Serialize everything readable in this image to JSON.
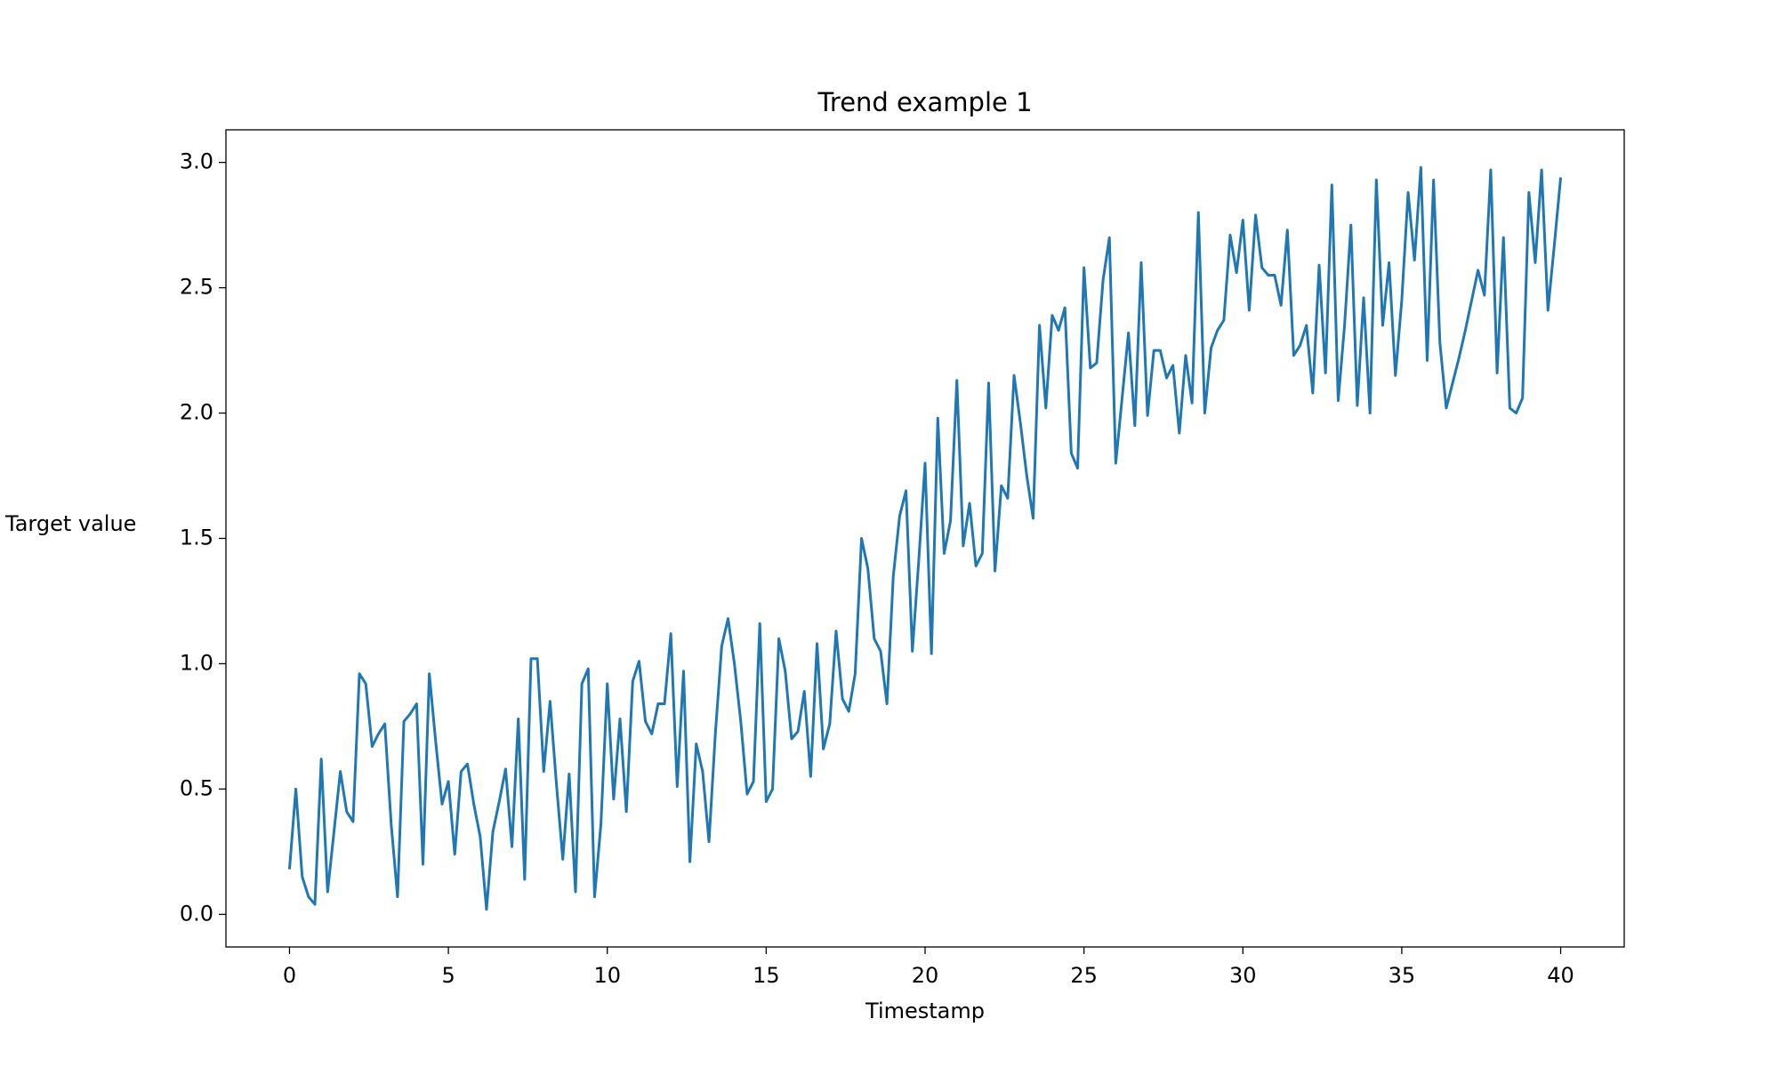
{
  "chart_data": {
    "type": "line",
    "title": "Trend example 1",
    "xlabel": "Timestamp",
    "ylabel": "Target value",
    "x": [
      0,
      0.2,
      0.4,
      0.6,
      0.8,
      1,
      1.2,
      1.4,
      1.6,
      1.8,
      2,
      2.2,
      2.4,
      2.6,
      2.8,
      3,
      3.2,
      3.4,
      3.6,
      3.8,
      4,
      4.2,
      4.4,
      4.6,
      4.8,
      5,
      5.2,
      5.4,
      5.6,
      5.8,
      6,
      6.2,
      6.4,
      6.6,
      6.8,
      7,
      7.2,
      7.4,
      7.6,
      7.8,
      8,
      8.2,
      8.4,
      8.6,
      8.8,
      9,
      9.2,
      9.4,
      9.6,
      9.8,
      10,
      10.2,
      10.4,
      10.6,
      10.8,
      11,
      11.2,
      11.4,
      11.6,
      11.8,
      12,
      12.2,
      12.4,
      12.6,
      12.8,
      13,
      13.2,
      13.4,
      13.6,
      13.8,
      14,
      14.2,
      14.4,
      14.6,
      14.8,
      15,
      15.2,
      15.4,
      15.6,
      15.8,
      16,
      16.2,
      16.4,
      16.6,
      16.8,
      17,
      17.2,
      17.4,
      17.6,
      17.8,
      18,
      18.2,
      18.4,
      18.6,
      18.8,
      19,
      19.2,
      19.4,
      19.6,
      19.8,
      20,
      20.2,
      20.4,
      20.6,
      20.8,
      21,
      21.2,
      21.4,
      21.6,
      21.8,
      22,
      22.2,
      22.4,
      22.6,
      22.8,
      23,
      23.2,
      23.4,
      23.6,
      23.8,
      24,
      24.2,
      24.4,
      24.6,
      24.8,
      25,
      25.2,
      25.4,
      25.6,
      25.8,
      26,
      26.2,
      26.4,
      26.6,
      26.8,
      27,
      27.2,
      27.4,
      27.6,
      27.8,
      28,
      28.2,
      28.4,
      28.6,
      28.8,
      29,
      29.2,
      29.4,
      29.6,
      29.8,
      30,
      30.2,
      30.4,
      30.6,
      30.8,
      31,
      31.2,
      31.4,
      31.6,
      31.8,
      32,
      32.2,
      32.4,
      32.6,
      32.8,
      33,
      33.2,
      33.4,
      33.6,
      33.8,
      34,
      34.2,
      34.4,
      34.6,
      34.8,
      35,
      35.2,
      35.4,
      35.6,
      35.8,
      36,
      36.2,
      36.4,
      36.6,
      36.8,
      37,
      37.2,
      37.4,
      37.6,
      37.8,
      38,
      38.2,
      38.4,
      38.6,
      38.8,
      39,
      39.2,
      39.4,
      39.6,
      39.8,
      40
    ],
    "values": [
      0.18,
      0.5,
      0.15,
      0.07,
      0.04,
      0.62,
      0.09,
      0.33,
      0.57,
      0.41,
      0.37,
      0.96,
      0.92,
      0.67,
      0.72,
      0.76,
      0.36,
      0.07,
      0.77,
      0.8,
      0.84,
      0.2,
      0.96,
      0.69,
      0.44,
      0.53,
      0.24,
      0.57,
      0.6,
      0.44,
      0.31,
      0.02,
      0.33,
      0.45,
      0.58,
      0.27,
      0.78,
      0.14,
      1.02,
      1.02,
      0.57,
      0.85,
      0.52,
      0.22,
      0.56,
      0.09,
      0.92,
      0.98,
      0.07,
      0.36,
      0.92,
      0.46,
      0.78,
      0.41,
      0.93,
      1.01,
      0.77,
      0.72,
      0.84,
      0.84,
      1.12,
      0.51,
      0.97,
      0.21,
      0.68,
      0.57,
      0.29,
      0.72,
      1.07,
      1.18,
      1.0,
      0.77,
      0.48,
      0.53,
      1.16,
      0.45,
      0.5,
      1.1,
      0.97,
      0.7,
      0.73,
      0.89,
      0.55,
      1.08,
      0.66,
      0.76,
      1.13,
      0.86,
      0.81,
      0.96,
      1.5,
      1.38,
      1.1,
      1.05,
      0.84,
      1.35,
      1.59,
      1.69,
      1.05,
      1.41,
      1.8,
      1.04,
      1.98,
      1.44,
      1.57,
      2.13,
      1.47,
      1.64,
      1.39,
      1.44,
      2.12,
      1.37,
      1.71,
      1.66,
      2.15,
      1.96,
      1.75,
      1.58,
      2.35,
      2.02,
      2.39,
      2.33,
      2.42,
      1.84,
      1.78,
      2.58,
      2.18,
      2.2,
      2.53,
      2.7,
      1.8,
      2.06,
      2.32,
      1.95,
      2.6,
      1.99,
      2.25,
      2.25,
      2.14,
      2.19,
      1.92,
      2.23,
      2.04,
      2.8,
      2.0,
      2.26,
      2.33,
      2.37,
      2.71,
      2.56,
      2.77,
      2.41,
      2.79,
      2.58,
      2.55,
      2.55,
      2.43,
      2.73,
      2.23,
      2.27,
      2.35,
      2.08,
      2.59,
      2.16,
      2.91,
      2.05,
      2.35,
      2.75,
      2.03,
      2.46,
      2.0,
      2.93,
      2.35,
      2.6,
      2.15,
      2.45,
      2.88,
      2.61,
      2.98,
      2.21,
      2.93,
      2.28,
      2.02,
      2.12,
      2.22,
      2.33,
      2.45,
      2.57,
      2.47,
      2.97,
      2.16,
      2.7,
      2.02,
      2.0,
      2.06,
      2.88,
      2.6,
      2.97,
      2.41,
      2.67,
      2.94
    ],
    "color": "#1f77b4",
    "xlim": [
      -2,
      42
    ],
    "xticks": [
      0,
      5,
      10,
      15,
      20,
      25,
      30,
      35,
      40
    ],
    "ylim": [
      -0.13,
      3.13
    ],
    "yticks": [
      {
        "value": 0,
        "label": "0.0"
      },
      {
        "value": 0.5,
        "label": "0.5"
      },
      {
        "value": 1,
        "label": "1.0"
      },
      {
        "value": 1.5,
        "label": "1.5"
      },
      {
        "value": 2,
        "label": "2.0"
      },
      {
        "value": 2.5,
        "label": "2.5"
      },
      {
        "value": 3,
        "label": "3.0"
      }
    ],
    "grid": false
  }
}
